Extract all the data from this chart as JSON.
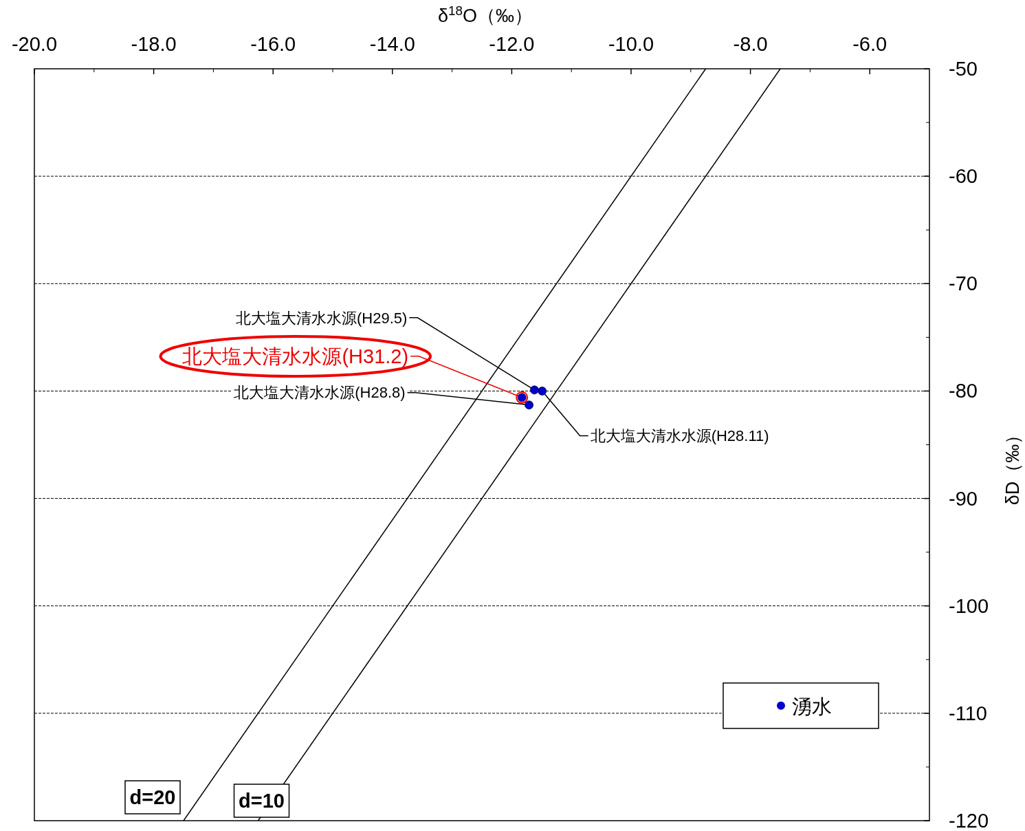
{
  "chart_data": {
    "type": "scatter",
    "xlabel": "δ$^{18}$O（‰）",
    "ylabel": "δD（‰）",
    "xlim": [
      -20,
      -5
    ],
    "xticks": [
      {
        "value": -20,
        "label": "-20.0"
      },
      {
        "value": -18,
        "label": "-18.0"
      },
      {
        "value": -16,
        "label": "-16.0"
      },
      {
        "value": -14,
        "label": "-14.0"
      },
      {
        "value": -12,
        "label": "-12.0"
      },
      {
        "value": -10,
        "label": "-10.0"
      },
      {
        "value": -8,
        "label": "-8.0"
      },
      {
        "value": -6,
        "label": "-6.0"
      }
    ],
    "ylim": [
      -120,
      -50
    ],
    "yticks": [
      -50,
      -60,
      -70,
      -80,
      -90,
      -100,
      -110,
      -120
    ],
    "grid": "y",
    "legend": "bottom right",
    "series": [
      {
        "name": "湧水",
        "marker": "circle",
        "color": "#0000cc",
        "x": [
          -11.62,
          -11.49,
          -11.83,
          -11.71
        ],
        "values": [
          -79.9,
          -80.0,
          -80.6,
          -81.3
        ]
      },
      {
        "name": "d=20",
        "type": "line",
        "color": "#000000",
        "x": [
          -17.5,
          -8.75
        ],
        "values": [
          -120,
          -50
        ]
      },
      {
        "name": "d=10",
        "type": "line",
        "color": "#000000",
        "x": [
          -16.25,
          -7.5
        ],
        "values": [
          -120,
          -50
        ]
      }
    ],
    "annotations": [
      {
        "text": "北大塩大清水水源(H29.5)",
        "x": -11.62,
        "y": -79.9
      },
      {
        "text": "北大塩大清水水源(H31.2)",
        "x": -11.83,
        "y": -80.6
      },
      {
        "text": "北大塩大清水水源(H28.8)",
        "x": -11.71,
        "y": -81.3
      },
      {
        "text": "北大塩大清水水源(H28.11)",
        "x": -11.49,
        "y": -80.0
      }
    ]
  }
}
